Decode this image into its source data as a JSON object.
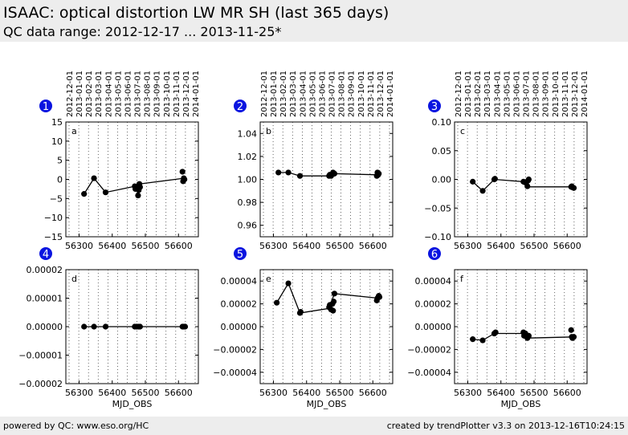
{
  "header": {
    "title": "ISAAC: optical distortion LW MR SH (last 365 days)",
    "subtitle": "QC data range: 2012-12-17 ... 2013-11-25*"
  },
  "footer": {
    "left": "powered by QC: www.eso.org/HC",
    "right": "created by trendPlotter v3.3 on 2013-12-16T10:24:15"
  },
  "colors": {
    "badge": "#0a14e0",
    "marker": "#000000",
    "header_bg": "#ededed"
  },
  "chart_data": [
    {
      "type": "scatter",
      "badge": "1",
      "panel_label": "a",
      "xlim": [
        56260,
        56660
      ],
      "ylim": [
        -15,
        15
      ],
      "xticks": [
        56300,
        56400,
        56500,
        56600
      ],
      "yticks": [
        -15,
        -10,
        -5,
        0,
        5,
        10,
        15
      ],
      "ytick_labels": [
        "−15",
        "−10",
        "−5",
        "0",
        "5",
        "10",
        "15"
      ],
      "top_dates": [
        "2012-12-01",
        "2013-01-01",
        "2013-02-01",
        "2013-03-01",
        "2013-04-01",
        "2013-05-01",
        "2013-06-01",
        "2013-07-01",
        "2013-08-01",
        "2013-09-01",
        "2013-10-01",
        "2013-11-01",
        "2013-12-01",
        "2014-01-01"
      ],
      "xlabel": "",
      "points": [
        [
          56315,
          -3.8
        ],
        [
          56345,
          0.3
        ],
        [
          56380,
          -3.4
        ],
        [
          56468,
          -1.8
        ],
        [
          56470,
          -2.5
        ],
        [
          56474,
          -2.2
        ],
        [
          56478,
          -4.2
        ],
        [
          56480,
          -2.8
        ],
        [
          56482,
          -1.2
        ],
        [
          56484,
          -2.0
        ],
        [
          56612,
          2.0
        ],
        [
          56614,
          -0.5
        ],
        [
          56616,
          0.3
        ],
        [
          56618,
          0.0
        ]
      ],
      "line": [
        [
          56315,
          -3.8
        ],
        [
          56345,
          0.3
        ],
        [
          56380,
          -3.4
        ],
        [
          56468,
          -1.8
        ],
        [
          56482,
          -1.2
        ],
        [
          56616,
          0.3
        ]
      ]
    },
    {
      "type": "scatter",
      "badge": "2",
      "panel_label": "b",
      "xlim": [
        56260,
        56660
      ],
      "ylim": [
        0.95,
        1.05
      ],
      "xticks": [
        56300,
        56400,
        56500,
        56600
      ],
      "yticks": [
        0.96,
        0.98,
        1.0,
        1.02,
        1.04
      ],
      "ytick_labels": [
        "0.96",
        "0.98",
        "1.00",
        "1.02",
        "1.04"
      ],
      "top_dates": [
        "2012-12-01",
        "2013-01-01",
        "2013-02-01",
        "2013-03-01",
        "2013-04-01",
        "2013-05-01",
        "2013-06-01",
        "2013-07-01",
        "2013-08-01",
        "2013-09-01",
        "2013-10-01",
        "2013-11-01",
        "2013-12-01",
        "2014-01-01"
      ],
      "xlabel": "",
      "points": [
        [
          56315,
          1.006
        ],
        [
          56345,
          1.006
        ],
        [
          56380,
          1.003
        ],
        [
          56468,
          1.003
        ],
        [
          56470,
          1.004
        ],
        [
          56474,
          1.003
        ],
        [
          56480,
          1.006
        ],
        [
          56482,
          1.005
        ],
        [
          56484,
          1.005
        ],
        [
          56612,
          1.003
        ],
        [
          56614,
          1.006
        ],
        [
          56616,
          1.004
        ],
        [
          56618,
          1.005
        ]
      ],
      "line": [
        [
          56315,
          1.006
        ],
        [
          56345,
          1.006
        ],
        [
          56380,
          1.003
        ],
        [
          56468,
          1.003
        ],
        [
          56482,
          1.005
        ],
        [
          56616,
          1.004
        ]
      ]
    },
    {
      "type": "scatter",
      "badge": "3",
      "panel_label": "c",
      "xlim": [
        56260,
        56660
      ],
      "ylim": [
        -0.1,
        0.1
      ],
      "xticks": [
        56300,
        56400,
        56500,
        56600
      ],
      "yticks": [
        -0.1,
        -0.05,
        0.0,
        0.05,
        0.1
      ],
      "ytick_labels": [
        "−0.10",
        "−0.05",
        "0.00",
        "0.05",
        "0.10"
      ],
      "top_dates": [
        "2012-12-01",
        "2013-01-01",
        "2013-02-01",
        "2013-03-01",
        "2013-04-01",
        "2013-05-01",
        "2013-06-01",
        "2013-07-01",
        "2013-08-01",
        "2013-09-01",
        "2013-10-01",
        "2013-11-01",
        "2013-12-01",
        "2014-01-01"
      ],
      "xlabel": "",
      "points": [
        [
          56315,
          -0.004
        ],
        [
          56345,
          -0.02
        ],
        [
          56380,
          0.0
        ],
        [
          56382,
          0.001
        ],
        [
          56468,
          -0.004
        ],
        [
          56472,
          -0.005
        ],
        [
          56476,
          -0.006
        ],
        [
          56480,
          -0.012
        ],
        [
          56482,
          -0.002
        ],
        [
          56484,
          0.0
        ],
        [
          56612,
          -0.013
        ],
        [
          56614,
          -0.012
        ],
        [
          56616,
          -0.014
        ],
        [
          56620,
          -0.015
        ]
      ],
      "line": [
        [
          56315,
          -0.004
        ],
        [
          56345,
          -0.02
        ],
        [
          56380,
          0.0
        ],
        [
          56468,
          -0.004
        ],
        [
          56482,
          -0.013
        ],
        [
          56616,
          -0.013
        ]
      ]
    },
    {
      "type": "scatter",
      "badge": "4",
      "panel_label": "d",
      "xlim": [
        56260,
        56660
      ],
      "ylim": [
        -2e-05,
        2e-05
      ],
      "xticks": [
        56300,
        56400,
        56500,
        56600
      ],
      "yticks": [
        -2e-05,
        -1e-05,
        0,
        1e-05,
        2e-05
      ],
      "ytick_labels": [
        "−0.00002",
        "−0.00001",
        "0.00000",
        "0.00001",
        "0.00002"
      ],
      "top_dates": [],
      "xlabel": "MJD_OBS",
      "points": [
        [
          56315,
          0
        ],
        [
          56345,
          0
        ],
        [
          56380,
          0
        ],
        [
          56468,
          0
        ],
        [
          56474,
          0
        ],
        [
          56480,
          0
        ],
        [
          56484,
          0
        ],
        [
          56612,
          0
        ],
        [
          56616,
          0
        ],
        [
          56620,
          0
        ]
      ],
      "line": [
        [
          56315,
          0
        ],
        [
          56345,
          0
        ],
        [
          56380,
          0
        ],
        [
          56468,
          0
        ],
        [
          56484,
          0
        ],
        [
          56620,
          0
        ]
      ]
    },
    {
      "type": "scatter",
      "badge": "5",
      "panel_label": "e",
      "xlim": [
        56260,
        56660
      ],
      "ylim": [
        -5e-05,
        5e-05
      ],
      "xticks": [
        56300,
        56400,
        56500,
        56600
      ],
      "yticks": [
        -4e-05,
        -2e-05,
        0,
        2e-05,
        4e-05
      ],
      "ytick_labels": [
        "−0.00004",
        "−0.00002",
        "0.00000",
        "0.00002",
        "0.00004"
      ],
      "top_dates": [],
      "xlabel": "MJD_OBS",
      "points": [
        [
          56310,
          2.1e-05
        ],
        [
          56345,
          3.8e-05
        ],
        [
          56380,
          1.2e-05
        ],
        [
          56382,
          1.3e-05
        ],
        [
          56468,
          1.7e-05
        ],
        [
          56470,
          1.9e-05
        ],
        [
          56474,
          1.5e-05
        ],
        [
          56478,
          2e-05
        ],
        [
          56480,
          1.4e-05
        ],
        [
          56482,
          2.2e-05
        ],
        [
          56484,
          2.9e-05
        ],
        [
          56612,
          2.3e-05
        ],
        [
          56614,
          2.5e-05
        ],
        [
          56618,
          2.7e-05
        ],
        [
          56620,
          2.6e-05
        ]
      ],
      "line": [
        [
          56310,
          2.1e-05
        ],
        [
          56345,
          3.8e-05
        ],
        [
          56380,
          1.2e-05
        ],
        [
          56468,
          1.6e-05
        ],
        [
          56484,
          2.9e-05
        ],
        [
          56616,
          2.5e-05
        ]
      ]
    },
    {
      "type": "scatter",
      "badge": "6",
      "panel_label": "f",
      "xlim": [
        56260,
        56660
      ],
      "ylim": [
        -5e-05,
        5e-05
      ],
      "xticks": [
        56300,
        56400,
        56500,
        56600
      ],
      "yticks": [
        -4e-05,
        -2e-05,
        0,
        2e-05,
        4e-05
      ],
      "ytick_labels": [
        "−0.00004",
        "−0.00002",
        "0.00000",
        "0.00002",
        "0.00004"
      ],
      "top_dates": [],
      "xlabel": "MJD_OBS",
      "points": [
        [
          56315,
          -1.1e-05
        ],
        [
          56345,
          -1.2e-05
        ],
        [
          56380,
          -6e-06
        ],
        [
          56384,
          -5e-06
        ],
        [
          56468,
          -5e-06
        ],
        [
          56470,
          -8e-06
        ],
        [
          56474,
          -6e-06
        ],
        [
          56480,
          -1e-05
        ],
        [
          56484,
          -8e-06
        ],
        [
          56612,
          -3e-06
        ],
        [
          56614,
          -9e-06
        ],
        [
          56616,
          -1e-05
        ],
        [
          56620,
          -9e-06
        ]
      ],
      "line": [
        [
          56315,
          -1.1e-05
        ],
        [
          56345,
          -1.2e-05
        ],
        [
          56380,
          -6e-06
        ],
        [
          56468,
          -6e-06
        ],
        [
          56484,
          -1e-05
        ],
        [
          56620,
          -9e-06
        ]
      ]
    }
  ]
}
